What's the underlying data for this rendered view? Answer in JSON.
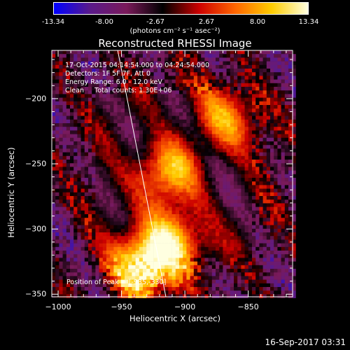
{
  "colorbar": {
    "ticks": [
      "-13.34",
      "-8.00",
      "-2.67",
      "2.67",
      "8.00",
      "13.34"
    ],
    "label": "(photons cm⁻² s⁻¹ asec⁻²)",
    "colors": [
      "#0000ff",
      "#5a1a8a",
      "#7a1a5a",
      "#000000",
      "#cc0000",
      "#ff6600",
      "#ffcc00",
      "#ffffe0"
    ]
  },
  "info": {
    "line1": "17-Oct-2015 04:14:54.000 to 04:24:54.000",
    "line2": "Detectors: 1F 5F 7F, Att 0",
    "line3": "Energy Range: 6.0 - 12.0 keV",
    "line4": "Clean     Total counts: 1.30E+06",
    "peak": "Position of Peak = [-935,-330]"
  },
  "footer": "16-Sep-2017 03:31",
  "chart_data": {
    "type": "heatmap",
    "title": "Reconstructed RHESSI Image",
    "xlabel": "Heliocentric X (arcsec)",
    "ylabel": "Heliocentric Y (arcsec)",
    "xlim": [
      -1005,
      -815
    ],
    "ylim": [
      -352,
      -163
    ],
    "xticks": [
      -1000,
      -950,
      -900,
      -850
    ],
    "yticks": [
      -200,
      -250,
      -300,
      -350
    ],
    "colorbar_range": [
      -13.34,
      13.34
    ],
    "sources": [
      {
        "x": -915,
        "y": -255,
        "value": 9.5
      },
      {
        "x": -910,
        "y": -305,
        "value": 8.0
      },
      {
        "x": -935,
        "y": -330,
        "value": 13.34
      },
      {
        "x": -870,
        "y": -215,
        "value": 6.0
      }
    ],
    "limb_line": [
      [
        -953,
        -163
      ],
      [
        -915,
        -352
      ]
    ]
  }
}
